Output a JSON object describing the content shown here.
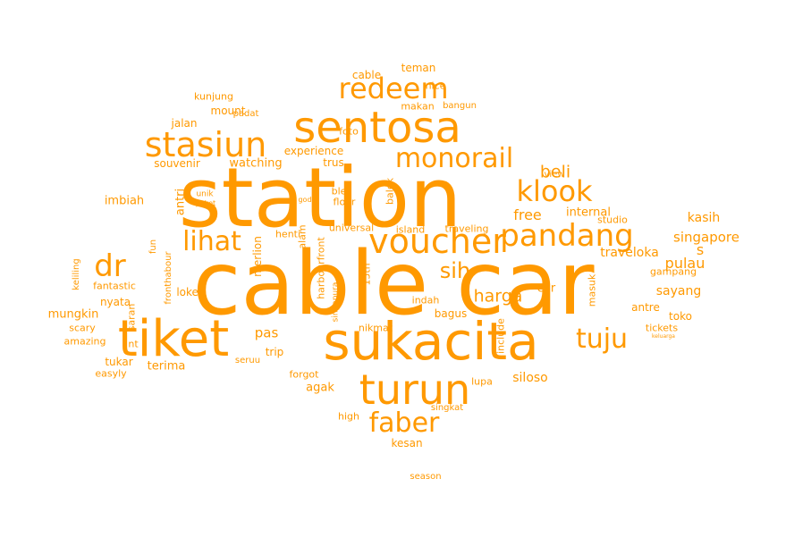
{
  "color": "#ff9900",
  "words": [
    {
      "text": "cable car"
    },
    {
      "text": "station"
    },
    {
      "text": "sukacita"
    },
    {
      "text": "tiket"
    },
    {
      "text": "sentosa"
    },
    {
      "text": "turun"
    },
    {
      "text": "voucher"
    },
    {
      "text": "stasiun"
    },
    {
      "text": "pandang"
    },
    {
      "text": "redeem"
    },
    {
      "text": "klook"
    },
    {
      "text": "monorail"
    },
    {
      "text": "faber"
    },
    {
      "text": "lihat"
    },
    {
      "text": "dr"
    },
    {
      "text": "tuju"
    },
    {
      "text": "sih"
    },
    {
      "text": "harga"
    },
    {
      "text": "beli"
    },
    {
      "text": "singapore"
    },
    {
      "text": "free"
    },
    {
      "text": "internal"
    },
    {
      "text": "kasih"
    },
    {
      "text": "pulau"
    },
    {
      "text": "s"
    },
    {
      "text": "sayang"
    },
    {
      "text": "traveloka"
    },
    {
      "text": "gampang"
    },
    {
      "text": "toko"
    },
    {
      "text": "tickets"
    },
    {
      "text": "antre"
    },
    {
      "text": "keluarga"
    },
    {
      "text": "experience"
    },
    {
      "text": "watching"
    },
    {
      "text": "souvenir"
    },
    {
      "text": "foto"
    },
    {
      "text": "trus"
    },
    {
      "text": "jalan"
    },
    {
      "text": "padat"
    },
    {
      "text": "makan"
    },
    {
      "text": "bangun"
    },
    {
      "text": "mount"
    },
    {
      "text": "kunjung"
    },
    {
      "text": "teman"
    },
    {
      "text": "cable"
    },
    {
      "text": "nice"
    },
    {
      "text": "view"
    },
    {
      "text": "studio"
    },
    {
      "text": "ble"
    },
    {
      "text": "floor"
    },
    {
      "text": "god"
    },
    {
      "text": "unik"
    },
    {
      "text": "paket"
    },
    {
      "text": "imbiah"
    },
    {
      "text": "antri"
    },
    {
      "text": "balek"
    },
    {
      "text": "island"
    },
    {
      "text": "universal"
    },
    {
      "text": "traveling"
    },
    {
      "text": "henti"
    },
    {
      "text": "merlion"
    },
    {
      "text": "harbourfront"
    },
    {
      "text": "alam"
    },
    {
      "text": "fronthabour"
    },
    {
      "text": "fun"
    },
    {
      "text": "keliling"
    },
    {
      "text": "fantastic"
    },
    {
      "text": "loket"
    },
    {
      "text": "mungkin"
    },
    {
      "text": "saran"
    },
    {
      "text": "nyata"
    },
    {
      "text": "scary"
    },
    {
      "text": "amazing"
    },
    {
      "text": "nt"
    },
    {
      "text": "pas"
    },
    {
      "text": "trip"
    },
    {
      "text": "seruu"
    },
    {
      "text": "tukar"
    },
    {
      "text": "terima"
    },
    {
      "text": "easyly"
    },
    {
      "text": "forgot"
    },
    {
      "text": "agak"
    },
    {
      "text": "singapura"
    },
    {
      "text": "15th"
    },
    {
      "text": "indah"
    },
    {
      "text": "bagus"
    },
    {
      "text": "nikmat"
    },
    {
      "text": "include"
    },
    {
      "text": "car"
    },
    {
      "text": "masuk"
    },
    {
      "text": "lupa"
    },
    {
      "text": "siloso"
    },
    {
      "text": "singkat"
    },
    {
      "text": "high"
    },
    {
      "text": "kesan"
    },
    {
      "text": "season"
    }
  ]
}
